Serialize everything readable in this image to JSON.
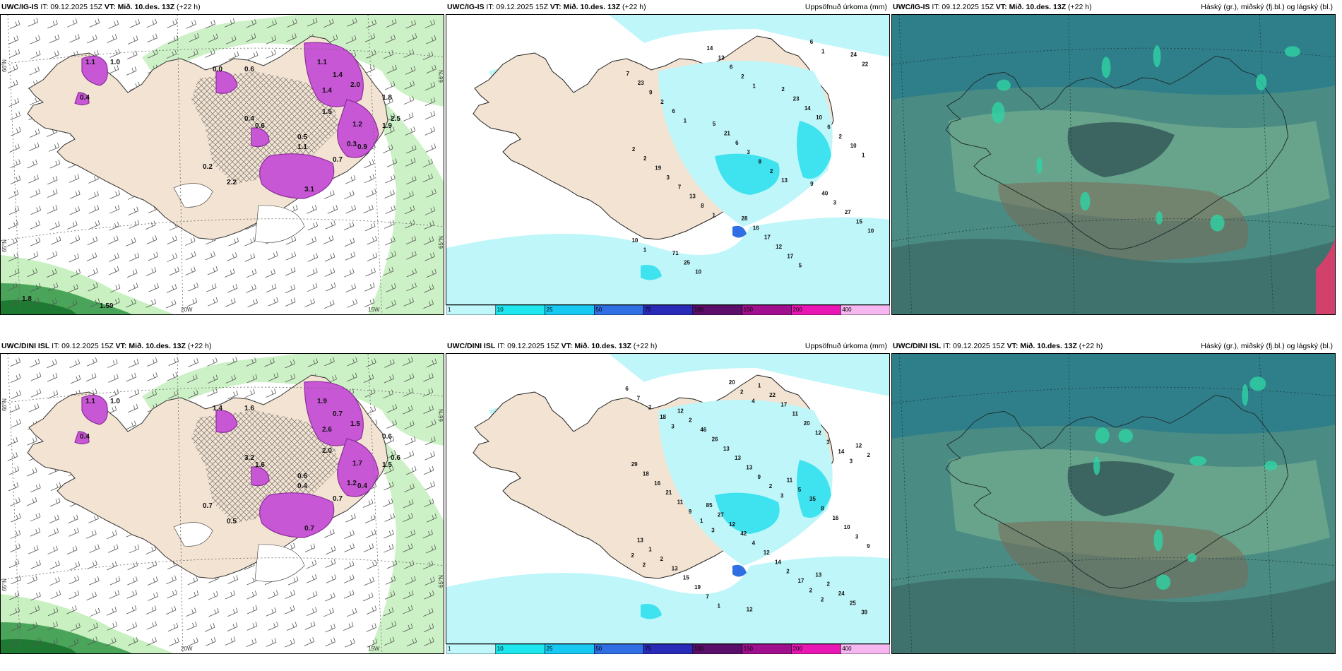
{
  "panels": [
    {
      "title": {
        "model": "UWC/IG-IS",
        "it": "IT: 09.12.2025 15Z",
        "vt": "VT: Mið. 10.des. 13Z",
        "lead": "(+22 h)",
        "right": ""
      },
      "labels": [
        "1.1",
        "1.0",
        "0.4",
        "0.0",
        "0.6",
        "1.1",
        "1.4",
        "2.0",
        "0.4",
        "1.4",
        "0.6",
        "1.1",
        "1.5",
        "1.2",
        "1.9",
        "0.9",
        "0.7",
        "0.3",
        "0.5",
        "2.2",
        "3.1",
        "1.8",
        "2.5",
        "0.2",
        "1.50",
        "1.8"
      ],
      "axis": [
        "66°N",
        "65°N",
        "66°N",
        "65°N",
        "20W",
        "15W"
      ]
    },
    {
      "title": {
        "model": "UWC/IG-IS",
        "it": "IT: 09.12.2025 15Z",
        "vt": "VT: Mið. 10.des. 13Z",
        "lead": "(+22 h)",
        "right": "Uppsöfnuð úrkoma (mm)"
      },
      "labels": [
        "1",
        "1",
        "1",
        "1",
        "1",
        "1",
        "13",
        "10",
        "6",
        "2",
        "6",
        "10",
        "8",
        "2",
        "2",
        "2",
        "6",
        "5",
        "10",
        "13",
        "8",
        "6",
        "9",
        "12",
        "17",
        "15",
        "7",
        "3",
        "10",
        "23",
        "14",
        "12",
        "27",
        "3",
        "6",
        "14",
        "7",
        "10",
        "17",
        "3",
        "19",
        "21",
        "23",
        "22",
        "25",
        "16",
        "40",
        "2",
        "5",
        "2",
        "24",
        "71",
        "28",
        "9",
        "2"
      ],
      "axis": []
    },
    {
      "title": {
        "model": "UWC/IG-IS",
        "it": "IT: 09.12.2025 15Z",
        "vt": "VT: Mið. 10.des. 13Z",
        "lead": "(+22 h)",
        "right": "Háský (gr.), miðský (fj.bl.) og lágský (bl.)"
      },
      "labels": [],
      "axis": []
    },
    {
      "title": {
        "model": "UWC/DINI ISL",
        "it": "IT: 09.12.2025 15Z",
        "vt": "VT: Mið. 10.des. 13Z",
        "lead": "(+22 h)",
        "right": ""
      },
      "labels": [
        "1.1",
        "1.0",
        "0.4",
        "1.4",
        "1.6",
        "1.9",
        "0.7",
        "1.5",
        "3.2",
        "2.6",
        "1.6",
        "0.4",
        "2.0",
        "1.7",
        "1.5",
        "0.4",
        "0.7",
        "1.2",
        "0.6",
        "0.5",
        "0.7",
        "0.6",
        "0.6",
        "0.7"
      ],
      "axis": [
        "66°N",
        "65°N",
        "66°N",
        "65°N",
        "20W",
        "15W"
      ]
    },
    {
      "title": {
        "model": "UWC/DINI ISL",
        "it": "IT: 09.12.2025 15Z",
        "vt": "VT: Mið. 10.des. 13Z",
        "lead": "(+22 h)",
        "right": "Uppsöfnuð úrkoma (mm)"
      },
      "labels": [
        "4",
        "2",
        "2",
        "3",
        "3",
        "3",
        "3",
        "2",
        "2",
        "2",
        "1",
        "2",
        "14",
        "18",
        "20",
        "17",
        "9",
        "9",
        "9",
        "3",
        "2",
        "1",
        "2",
        "3",
        "11",
        "13",
        "12",
        "7",
        "7",
        "14",
        "10",
        "21",
        "13",
        "20",
        "6",
        "19",
        "12",
        "16",
        "16",
        "13",
        "11",
        "39",
        "15",
        "4",
        "8",
        "18",
        "26",
        "17",
        "25",
        "13",
        "42",
        "35",
        "29",
        "46",
        "22",
        "24",
        "2",
        "12",
        "5",
        "2",
        "2",
        "1",
        "2",
        "1",
        "27",
        "11",
        "12",
        "12",
        "12",
        "13",
        "13",
        "85"
      ],
      "axis": []
    },
    {
      "title": {
        "model": "UWC/DINI ISL",
        "it": "IT: 09.12.2025 15Z",
        "vt": "VT: Mið. 10.des. 13Z",
        "lead": "(+22 h)",
        "right": "Háský (gr.), miðský (fj.bl.) og lágský (bl.)"
      },
      "labels": [],
      "axis": []
    }
  ],
  "colorbar": {
    "ticks": [
      "1",
      "10",
      "25",
      "50",
      "75",
      "100",
      "150",
      "200",
      "400"
    ],
    "colors": [
      "#bff7fb",
      "#1ee6ee",
      "#16c8f2",
      "#2f6fe3",
      "#2a2ab8",
      "#5b0f6a",
      "#a0108e",
      "#e817b4",
      "#f6b6f0"
    ]
  },
  "colors": {
    "land": "#f2e3d2",
    "precip_light": "#bff6fa",
    "precip_mid": "#3fe3ef",
    "snow_magenta": "#c857d6",
    "snow_dark": "#8b2f9a",
    "green_light": "#c8f0c0",
    "green_dark": "#1e7a32",
    "cloud_teal": "#2f7f8a",
    "cloud_dark": "#355a5a",
    "cloud_brown": "#7a6a55"
  }
}
